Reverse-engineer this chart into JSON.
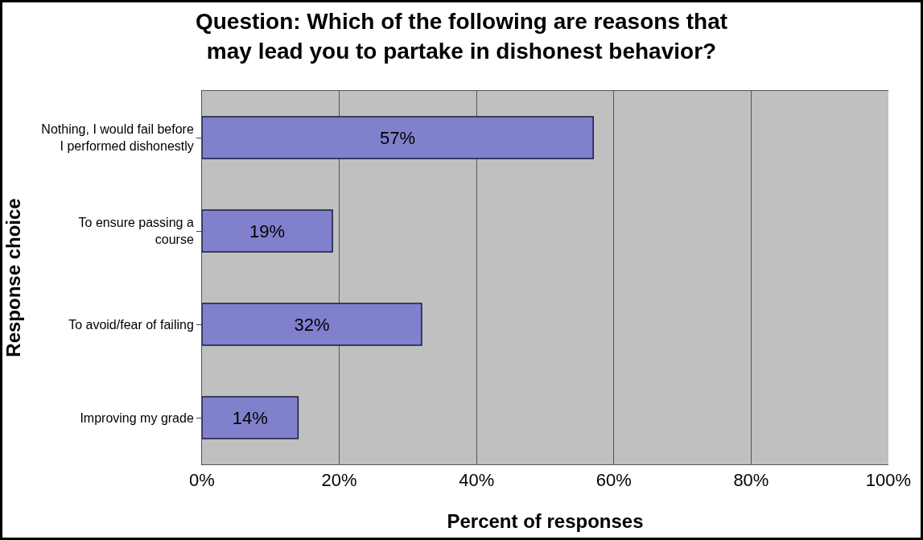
{
  "chart_data": {
    "type": "bar",
    "orientation": "horizontal",
    "title": "Question: Which of the following are reasons that\nmay lead you to partake in dishonest behavior?",
    "xlabel": "Percent of responses",
    "ylabel": "Response choice",
    "categories": [
      "Nothing, I would fail before\nI performed dishonestly",
      "To ensure passing a\ncourse",
      "To avoid/fear of failing",
      "Improving my grade"
    ],
    "values": [
      57,
      19,
      32,
      14
    ],
    "value_labels": [
      "57%",
      "19%",
      "32%",
      "14%"
    ],
    "color": "#8080cc",
    "xlim": [
      0,
      100
    ],
    "xticks": [
      {
        "value": 0,
        "label": "0%"
      },
      {
        "value": 20,
        "label": "20%"
      },
      {
        "value": 40,
        "label": "40%"
      },
      {
        "value": 60,
        "label": "60%"
      },
      {
        "value": 80,
        "label": "80%"
      },
      {
        "value": 100,
        "label": "100%"
      }
    ],
    "grid": "x"
  }
}
